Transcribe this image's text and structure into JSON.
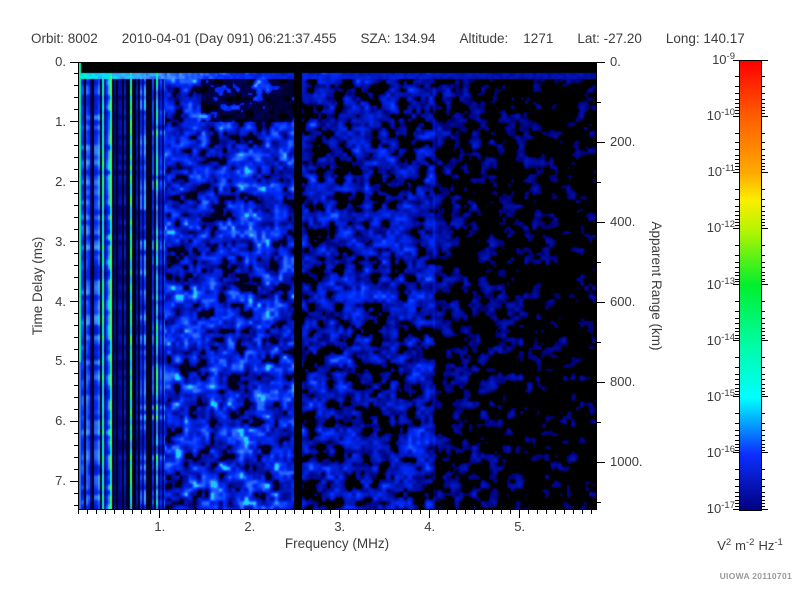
{
  "header": {
    "fields": [
      "Orbit: 8002",
      "2010-04-01 (Day 091) 06:21:37.455",
      "SZA: 134.94",
      "Altitude:    1271",
      "Lat: -27.20",
      "Long: 140.17"
    ]
  },
  "chart_data": {
    "type": "heatmap",
    "subtype": "radar-sounder-ionogram-spectrogram",
    "title": "",
    "x_axis": {
      "label": "Frequency (MHz)",
      "min": 0.09,
      "max": 5.86,
      "major_ticks": [
        1,
        2,
        3,
        4,
        5
      ],
      "major_tick_labels": [
        "1.",
        "2.",
        "3.",
        "4.",
        "5."
      ],
      "minor_tick_step": 0.1
    },
    "y_axis_left": {
      "label": "Time Delay (ms)",
      "min": 0,
      "max": 7.48,
      "direction": "down",
      "major_ticks": [
        0,
        1,
        2,
        3,
        4,
        5,
        6,
        7
      ],
      "major_tick_labels": [
        "0.",
        "1.",
        "2.",
        "3.",
        "4.",
        "5.",
        "6.",
        "7."
      ],
      "minor_tick_step": 0.2
    },
    "y_axis_right": {
      "label": "Apparent Range (km)",
      "min": 0,
      "max": 1120,
      "major_ticks": [
        0,
        200,
        400,
        600,
        800,
        1000
      ],
      "major_tick_labels": [
        "0.",
        "200.",
        "400.",
        "600.",
        "800.",
        "1000."
      ],
      "minor_tick_step": 100
    },
    "colorbar": {
      "scale": "log10",
      "base": "10",
      "exponents": [
        "-9",
        "-10",
        "-11",
        "-12",
        "-13",
        "-14",
        "-15",
        "-16",
        "-17"
      ],
      "units_parts": [
        [
          "V",
          "2"
        ],
        [
          "m",
          "-2"
        ],
        [
          "Hz",
          "-1"
        ]
      ],
      "gradient": [
        "#ff0000",
        "#ff5e00",
        "#ffaa00",
        "#fced00",
        "#b8f400",
        "#00ef2e",
        "#00fb9e",
        "#00ffff",
        "#0c2fff",
        "#000080"
      ],
      "gradient_positions": [
        0,
        0.125,
        0.25,
        0.31,
        0.375,
        0.5,
        0.625,
        0.75,
        0.875,
        1
      ]
    },
    "features": {
      "transmit_blackout_band_ms": [
        0,
        0.18
      ],
      "surface_echo_line_ms": 0.25,
      "surface_echo_bright_below_mhz": 1.9,
      "plasma_harmonic_streaks_below_mhz": 1.05,
      "bright_green_column_at_mhz": 0.1,
      "interference_gap_mhz": [
        2.49,
        2.57
      ],
      "dark_patch": {
        "f_mhz": [
          1.45,
          2.49
        ],
        "t_ms": [
          0.3,
          1.0
        ]
      },
      "noise_fadeout_start_mhz": 4.05,
      "background_floor_exponent": -17,
      "typical_noise_exponent_range": [
        -17,
        -15
      ],
      "streak_peak_exponent": -13
    }
  },
  "footer": {
    "credit": "UIOWA 20110701"
  }
}
